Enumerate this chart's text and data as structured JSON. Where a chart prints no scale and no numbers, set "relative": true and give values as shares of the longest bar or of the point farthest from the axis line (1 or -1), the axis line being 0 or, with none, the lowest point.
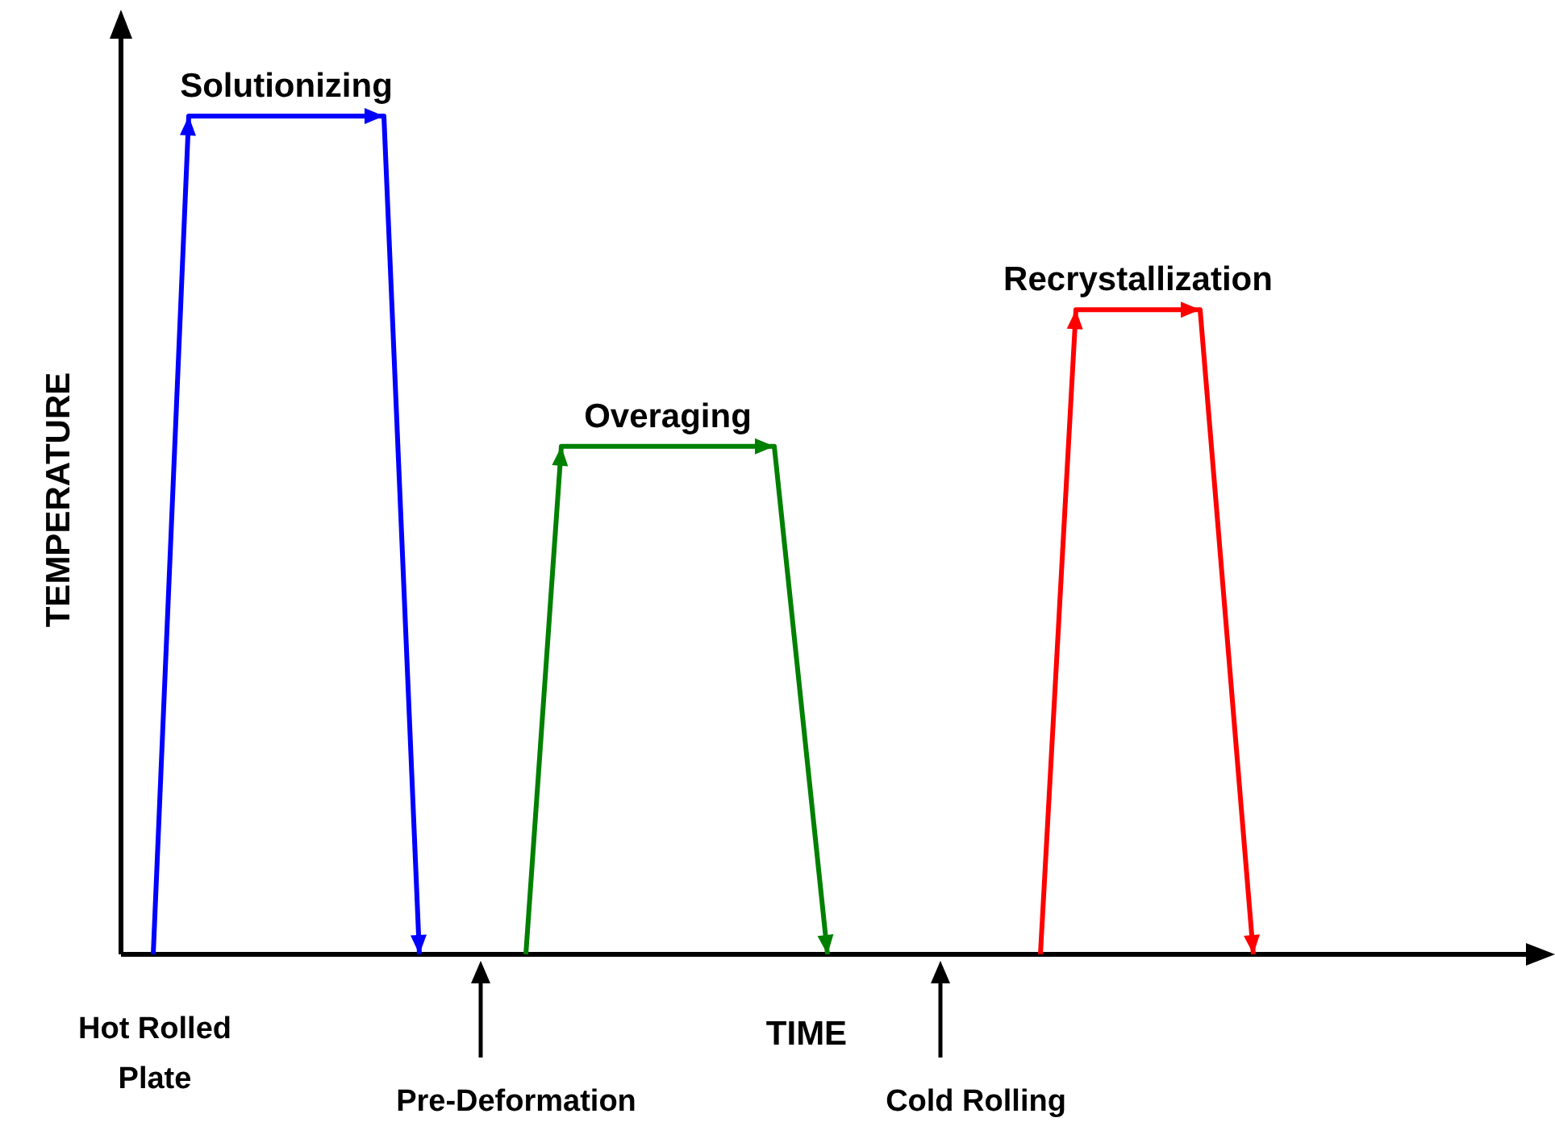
{
  "chart_data": {
    "type": "line",
    "relative": true,
    "xlabel": "TIME",
    "ylabel": "TEMPERATURE",
    "marker": "none",
    "line_style": "solid",
    "categories": [
      null,
      null,
      null,
      null,
      null,
      null,
      null,
      null,
      null,
      null,
      null,
      null,
      null,
      null,
      null,
      null,
      null,
      null,
      null,
      null,
      null,
      null,
      null,
      null,
      null,
      null,
      null,
      null,
      null,
      null,
      null,
      null,
      null,
      null,
      null,
      null,
      null,
      null,
      null,
      null,
      null,
      null,
      null,
      null,
      null,
      null,
      null,
      null,
      null,
      null,
      null,
      null,
      null,
      null,
      null,
      null,
      null,
      null,
      null,
      null,
      null,
      null,
      null
    ],
    "series": [
      {
        "name": "Solutionizing",
        "color": "#0000ff",
        "values": [
          0,
          null,
          1,
          null,
          null,
          null,
          null,
          null,
          null,
          null,
          null,
          null,
          null,
          1,
          null,
          0,
          null,
          null,
          null,
          null,
          null,
          null,
          null,
          null,
          null,
          null,
          null,
          null,
          null,
          null,
          null,
          null,
          null,
          null,
          null,
          null,
          null,
          null,
          null,
          null,
          null,
          null,
          null,
          null,
          null,
          null,
          null,
          null,
          null,
          null,
          null,
          null,
          null,
          null,
          null,
          null,
          null,
          null,
          null,
          null,
          null,
          null,
          null
        ]
      },
      {
        "name": "Overaging",
        "color": "#008000",
        "values": [
          null,
          null,
          null,
          null,
          null,
          null,
          null,
          null,
          null,
          null,
          null,
          null,
          null,
          null,
          null,
          null,
          null,
          null,
          null,
          null,
          null,
          0,
          null,
          0.606,
          null,
          null,
          null,
          null,
          null,
          null,
          null,
          null,
          null,
          null,
          null,
          0.606,
          null,
          null,
          0,
          null,
          null,
          null,
          null,
          null,
          null,
          null,
          null,
          null,
          null,
          null,
          null,
          null,
          null,
          null,
          null,
          null,
          null,
          null,
          null,
          null,
          null,
          null,
          null
        ]
      },
      {
        "name": "Recrystallization",
        "color": "#ff0000",
        "values": [
          null,
          null,
          null,
          null,
          null,
          null,
          null,
          null,
          null,
          null,
          null,
          null,
          null,
          null,
          null,
          null,
          null,
          null,
          null,
          null,
          null,
          null,
          null,
          null,
          null,
          null,
          null,
          null,
          null,
          null,
          null,
          null,
          null,
          null,
          null,
          null,
          null,
          null,
          null,
          null,
          null,
          null,
          null,
          null,
          null,
          null,
          null,
          null,
          null,
          null,
          0,
          null,
          0.769,
          null,
          null,
          null,
          null,
          null,
          null,
          0.769,
          null,
          null,
          0
        ]
      }
    ],
    "annotations": [
      "Hot Rolled Plate",
      "Pre-Deformation",
      "Cold Rolling"
    ]
  }
}
